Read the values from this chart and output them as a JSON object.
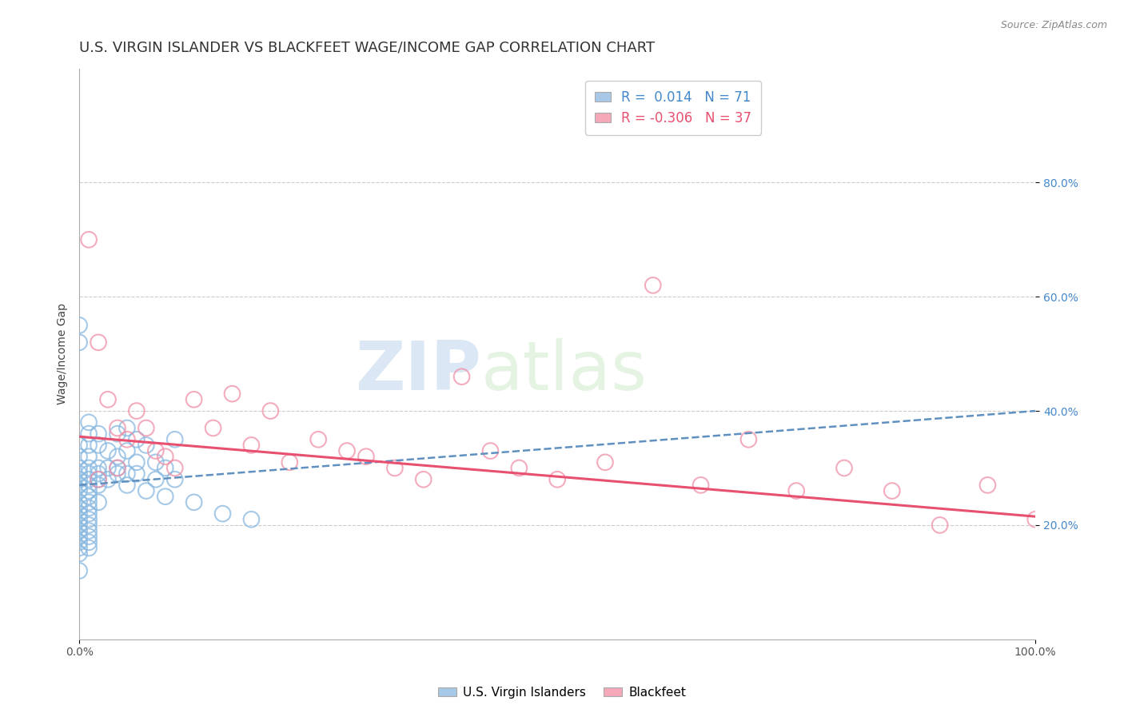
{
  "title": "U.S. VIRGIN ISLANDER VS BLACKFEET WAGE/INCOME GAP CORRELATION CHART",
  "source_text": "Source: ZipAtlas.com",
  "ylabel": "Wage/Income Gap",
  "x_tick_labels": [
    "0.0%",
    "100.0%"
  ],
  "y_tick_labels_right": [
    "20.0%",
    "40.0%",
    "60.0%",
    "80.0%"
  ],
  "y_tick_values_right": [
    0.2,
    0.4,
    0.6,
    0.8
  ],
  "legend_entry1": "R =  0.014   N = 71",
  "legend_entry2": "R = -0.306   N = 37",
  "legend_color1": "#a8c8e8",
  "legend_color2": "#f4a8b8",
  "watermark_zip": "ZIP",
  "watermark_atlas": "atlas",
  "background_color": "#ffffff",
  "plot_bg_color": "#ffffff",
  "grid_color": "#cccccc",
  "blue_scatter_color": "#88b8e0",
  "pink_scatter_color": "#f090a8",
  "blue_line_color": "#6090c0",
  "pink_line_color": "#e85070",
  "blue_scatter_x": [
    0.0,
    0.0,
    0.0,
    0.0,
    0.0,
    0.0,
    0.0,
    0.0,
    0.0,
    0.0,
    0.01,
    0.01,
    0.01,
    0.01,
    0.01,
    0.01,
    0.01,
    0.01,
    0.01,
    0.02,
    0.02,
    0.02,
    0.02,
    0.02,
    0.03,
    0.03,
    0.04,
    0.04,
    0.04,
    0.05,
    0.05,
    0.05,
    0.06,
    0.06,
    0.07,
    0.08,
    0.08,
    0.09,
    0.1,
    0.1,
    0.01,
    0.01,
    0.01,
    0.01,
    0.01,
    0.01,
    0.01,
    0.01,
    0.01,
    0.01,
    0.0,
    0.0,
    0.0,
    0.0,
    0.0,
    0.0,
    0.0,
    0.0,
    0.0,
    0.0,
    0.02,
    0.02,
    0.03,
    0.04,
    0.05,
    0.06,
    0.07,
    0.09,
    0.12,
    0.15,
    0.18
  ],
  "blue_scatter_y": [
    0.55,
    0.52,
    0.34,
    0.32,
    0.3,
    0.29,
    0.28,
    0.27,
    0.26,
    0.12,
    0.38,
    0.36,
    0.34,
    0.32,
    0.3,
    0.29,
    0.28,
    0.27,
    0.26,
    0.36,
    0.34,
    0.3,
    0.29,
    0.28,
    0.33,
    0.3,
    0.36,
    0.32,
    0.29,
    0.37,
    0.33,
    0.29,
    0.35,
    0.31,
    0.34,
    0.31,
    0.28,
    0.3,
    0.35,
    0.28,
    0.25,
    0.24,
    0.23,
    0.22,
    0.21,
    0.2,
    0.19,
    0.18,
    0.17,
    0.16,
    0.24,
    0.23,
    0.22,
    0.21,
    0.2,
    0.19,
    0.18,
    0.17,
    0.16,
    0.15,
    0.27,
    0.24,
    0.28,
    0.3,
    0.27,
    0.29,
    0.26,
    0.25,
    0.24,
    0.22,
    0.21
  ],
  "pink_scatter_x": [
    0.01,
    0.02,
    0.03,
    0.04,
    0.05,
    0.06,
    0.07,
    0.08,
    0.09,
    0.1,
    0.12,
    0.14,
    0.16,
    0.18,
    0.2,
    0.22,
    0.25,
    0.28,
    0.3,
    0.33,
    0.36,
    0.4,
    0.43,
    0.46,
    0.5,
    0.55,
    0.6,
    0.65,
    0.7,
    0.75,
    0.8,
    0.85,
    0.9,
    0.95,
    1.0,
    0.02,
    0.04
  ],
  "pink_scatter_y": [
    0.7,
    0.52,
    0.42,
    0.37,
    0.35,
    0.4,
    0.37,
    0.33,
    0.32,
    0.3,
    0.42,
    0.37,
    0.43,
    0.34,
    0.4,
    0.31,
    0.35,
    0.33,
    0.32,
    0.3,
    0.28,
    0.46,
    0.33,
    0.3,
    0.28,
    0.31,
    0.62,
    0.27,
    0.35,
    0.26,
    0.3,
    0.26,
    0.2,
    0.27,
    0.21,
    0.28,
    0.3
  ],
  "blue_line_x": [
    0.0,
    1.0
  ],
  "blue_line_y_start": 0.27,
  "blue_line_y_end": 0.4,
  "pink_line_x": [
    0.0,
    1.0
  ],
  "pink_line_y_start": 0.355,
  "pink_line_y_end": 0.215,
  "xlim": [
    0.0,
    1.0
  ],
  "ylim": [
    0.0,
    1.0
  ],
  "marker_size": 200,
  "marker_linewidth": 1.5,
  "title_fontsize": 13,
  "axis_label_fontsize": 10,
  "tick_fontsize": 10,
  "legend_fontsize": 12,
  "legend_text_color1": "#4488cc",
  "legend_text_color2": "#e85070",
  "ytick_color": "#4488cc"
}
